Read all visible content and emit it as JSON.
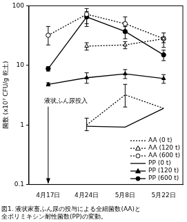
{
  "chart_data": {
    "type": "line",
    "title": [
      "図1. 液状家畜ふん尿の投与による全細菌数(AA)と",
      "全ポリミキシン耐性菌数(PP)の変動。"
    ],
    "y_label": "菌数 (x10⁷ CFU/g 乾土)",
    "categories": [
      "4月17日",
      "4月24日",
      "5月8日",
      "5月22日"
    ],
    "log": "y",
    "ylim": [
      0.1,
      100
    ],
    "yticks": [
      0.1,
      1,
      10,
      100
    ],
    "grid": false,
    "legend": "lower right",
    "annotations": [
      {
        "text": "液状ふん尿投入",
        "x": "4月17日",
        "y": 2.2
      }
    ],
    "series": [
      {
        "name": "AA (0 t)",
        "color": "#000000",
        "line_style": "dotted",
        "marker": "none",
        "values": [
          null,
          1.0,
          3.2,
          1.9
        ],
        "error_low": [
          null,
          0.8,
          2.0,
          null
        ],
        "error_high": [
          null,
          1.3,
          4.8,
          null
        ]
      },
      {
        "name": "AA (120 t)",
        "color": "#000000",
        "line_style": "dotted",
        "marker": "open_triangle",
        "values": [
          null,
          21,
          22,
          28
        ],
        "error_low": [
          null,
          18,
          19,
          24
        ],
        "error_high": [
          null,
          24,
          25,
          30
        ]
      },
      {
        "name": "AA (600 t)",
        "color": "#000000",
        "line_style": "dotted",
        "marker": "open_circle",
        "values": [
          32,
          72,
          50,
          28
        ],
        "error_low": [
          22,
          50,
          35,
          20
        ],
        "error_high": [
          45,
          90,
          65,
          35
        ]
      },
      {
        "name": "PP (0 t)",
        "color": "#000000",
        "line_style": "solid",
        "marker": "none",
        "values": [
          null,
          0.95,
          0.92,
          1.9
        ],
        "error_low": [
          null,
          null,
          null,
          null
        ],
        "error_high": [
          null,
          null,
          null,
          null
        ]
      },
      {
        "name": "PP (120 t)",
        "color": "#000000",
        "line_style": "solid",
        "marker": "triangle",
        "values": [
          4.8,
          6.2,
          7.2,
          6.0
        ],
        "error_low": [
          4.5,
          5.0,
          6.0,
          5.0
        ],
        "error_high": [
          5.1,
          7.5,
          8.5,
          7.0
        ]
      },
      {
        "name": "PP (600 t)",
        "color": "#000000",
        "line_style": "solid",
        "marker": "circle",
        "values": [
          8.8,
          65,
          37,
          15
        ],
        "error_low": [
          8.0,
          45,
          28,
          12
        ],
        "error_high": [
          9.5,
          80,
          45,
          18
        ]
      }
    ]
  }
}
